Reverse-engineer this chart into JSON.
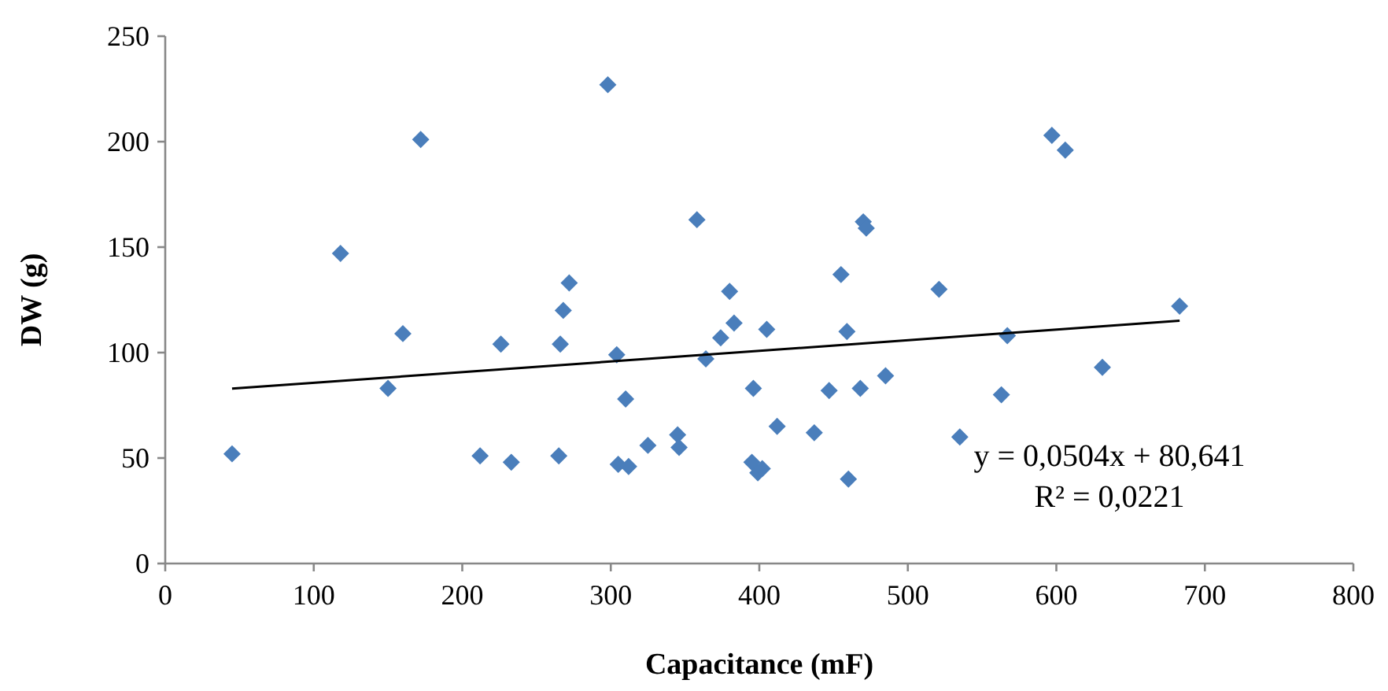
{
  "chart_data": {
    "type": "scatter",
    "xlabel": "Capacitance (mF)",
    "ylabel": "DW (g)",
    "xlim": [
      0,
      800
    ],
    "xticks": [
      0,
      100,
      200,
      300,
      400,
      500,
      600,
      700,
      800
    ],
    "ylim": [
      0,
      250
    ],
    "yticks": [
      0,
      50,
      100,
      150,
      200,
      250
    ],
    "marker": "diamond",
    "series": [
      {
        "color": "#4a7ebb",
        "x": [
          45,
          118,
          150,
          160,
          172,
          212,
          226,
          233,
          265,
          266,
          268,
          272,
          298,
          304,
          305,
          310,
          312,
          325,
          345,
          346,
          358,
          364,
          374,
          380,
          383,
          395,
          396,
          399,
          402,
          405,
          412,
          437,
          447,
          455,
          459,
          460,
          468,
          470,
          472,
          485,
          521,
          535,
          563,
          567,
          597,
          606,
          631,
          683
        ],
        "values": [
          52,
          147,
          83,
          109,
          201,
          51,
          104,
          48,
          51,
          104,
          120,
          133,
          227,
          99,
          47,
          78,
          46,
          56,
          61,
          55,
          163,
          97,
          107,
          129,
          114,
          48,
          83,
          43,
          45,
          111,
          65,
          62,
          82,
          137,
          110,
          40,
          83,
          162,
          159,
          89,
          130,
          60,
          80,
          108,
          203,
          196,
          93,
          122
        ]
      },
      {
        "type": "line",
        "color": "#000000",
        "x": [
          45,
          683
        ],
        "values": [
          82.9,
          115.1
        ],
        "marker": "none"
      }
    ],
    "annotations": [
      "y = 0,0504x + 80,641",
      "R² = 0,0221"
    ]
  }
}
